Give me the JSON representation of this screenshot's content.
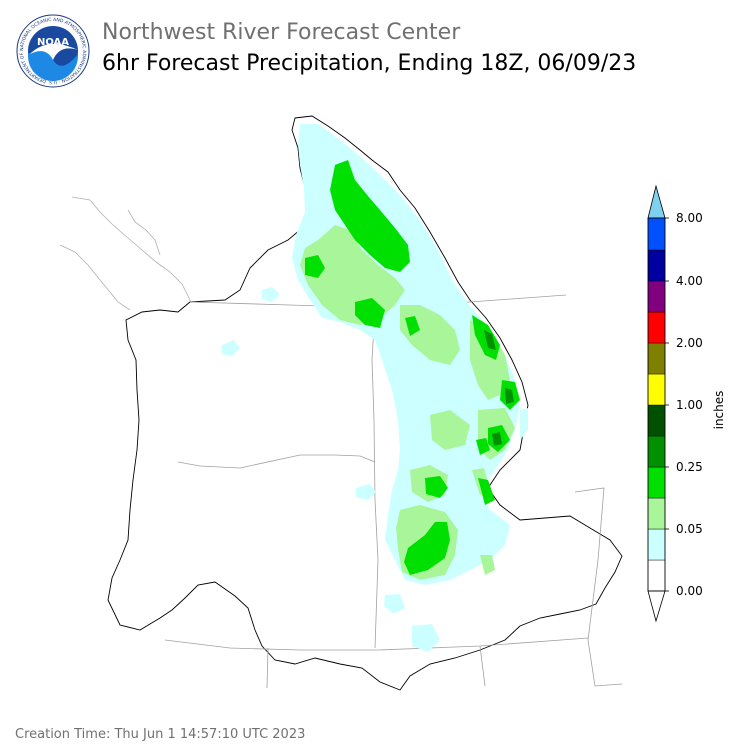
{
  "header": {
    "organization": "Northwest River Forecast Center",
    "title": "6hr Forecast Precipitation, Ending 18Z, 06/09/23"
  },
  "logo": {
    "text": "NOAA",
    "ring_text": "NATIONAL OCEANIC AND ATMOSPHERIC ADMINISTRATION · U.S. DEPARTMENT OF COMMERCE",
    "icon": "noaa-logo-icon"
  },
  "legend": {
    "unit_label": "inches",
    "tick_labels": [
      "0.00",
      "0.05",
      "0.25",
      "1.00",
      "2.00",
      "4.00",
      "8.00"
    ],
    "bin_colors": [
      "#ffffff",
      "#ccffff",
      "#a8f59a",
      "#00e000",
      "#009000",
      "#005000",
      "#ffff00",
      "#808000",
      "#ff0000",
      "#800080",
      "#0000a0",
      "#0050ff",
      "#80d0f0"
    ]
  },
  "footer": {
    "creation_time": "Creation Time: Thu Jun 1 14:57:10 UTC 2023"
  }
}
